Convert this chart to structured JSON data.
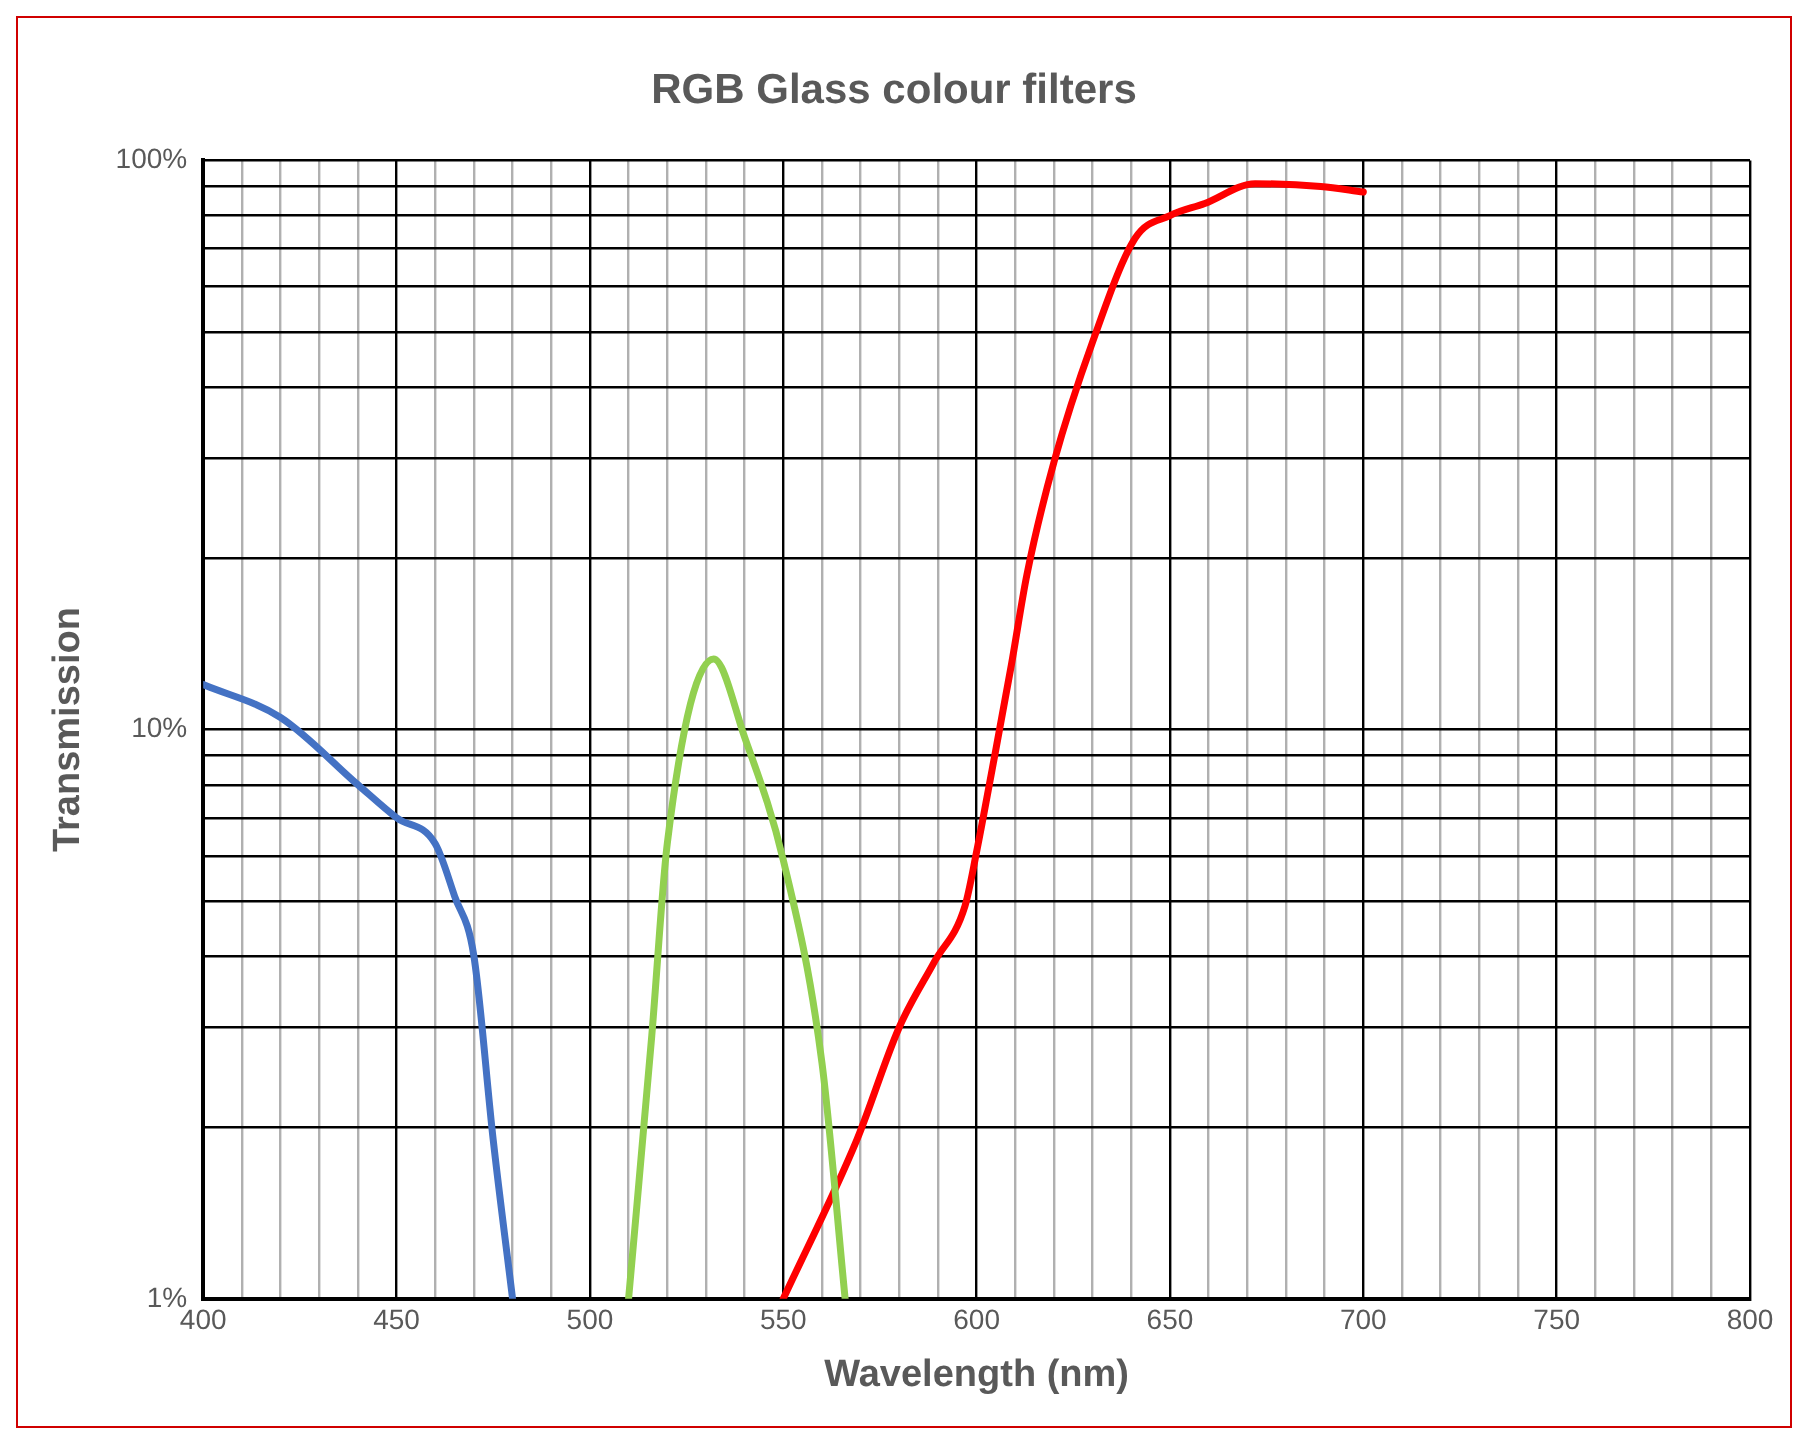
{
  "chart_data": {
    "type": "line",
    "title": "RGB Glass colour filters",
    "xlabel": "Wavelength (nm)",
    "ylabel": "Transmission",
    "log": "y",
    "grid": true,
    "legend": false,
    "marker": "none",
    "line_style": "solid",
    "xlim": [
      400,
      800
    ],
    "xticks": [
      400,
      {
        "value": 410,
        "label": null
      },
      {
        "value": 420,
        "label": null
      },
      {
        "value": 430,
        "label": null
      },
      {
        "value": 440,
        "label": null
      },
      450,
      {
        "value": 460,
        "label": null
      },
      {
        "value": 470,
        "label": null
      },
      {
        "value": 480,
        "label": null
      },
      {
        "value": 490,
        "label": null
      },
      500,
      {
        "value": 510,
        "label": null
      },
      {
        "value": 520,
        "label": null
      },
      {
        "value": 530,
        "label": null
      },
      {
        "value": 540,
        "label": null
      },
      550,
      {
        "value": 560,
        "label": null
      },
      {
        "value": 570,
        "label": null
      },
      {
        "value": 580,
        "label": null
      },
      {
        "value": 590,
        "label": null
      },
      600,
      {
        "value": 610,
        "label": null
      },
      {
        "value": 620,
        "label": null
      },
      {
        "value": 630,
        "label": null
      },
      {
        "value": 640,
        "label": null
      },
      650,
      {
        "value": 660,
        "label": null
      },
      {
        "value": 670,
        "label": null
      },
      {
        "value": 680,
        "label": null
      },
      {
        "value": 690,
        "label": null
      },
      700,
      {
        "value": 710,
        "label": null
      },
      {
        "value": 720,
        "label": null
      },
      {
        "value": 730,
        "label": null
      },
      {
        "value": 740,
        "label": null
      },
      750,
      {
        "value": 760,
        "label": null
      },
      {
        "value": 770,
        "label": null
      },
      {
        "value": 780,
        "label": null
      },
      {
        "value": 790,
        "label": null
      },
      800
    ],
    "ylim": [
      1,
      100
    ],
    "yticks": [
      {
        "value": 1,
        "label": "1%"
      },
      {
        "value": 2,
        "label": null
      },
      {
        "value": 3,
        "label": null
      },
      {
        "value": 4,
        "label": null
      },
      {
        "value": 5,
        "label": null
      },
      {
        "value": 6,
        "label": null
      },
      {
        "value": 7,
        "label": null
      },
      {
        "value": 8,
        "label": null
      },
      {
        "value": 9,
        "label": null
      },
      {
        "value": 10,
        "label": "10%"
      },
      {
        "value": 20,
        "label": null
      },
      {
        "value": 30,
        "label": null
      },
      {
        "value": 40,
        "label": null
      },
      {
        "value": 50,
        "label": null
      },
      {
        "value": 60,
        "label": null
      },
      {
        "value": 70,
        "label": null
      },
      {
        "value": 80,
        "label": null
      },
      {
        "value": 90,
        "label": null
      },
      {
        "value": 100,
        "label": "100%"
      }
    ],
    "series": [
      {
        "color": "#4472c4",
        "x": [
          400,
          420,
          440,
          450,
          460,
          465,
          470,
          475,
          480
        ],
        "values": [
          12,
          10.5,
          8,
          7,
          6.3,
          5.1,
          4,
          1.9,
          1
        ]
      },
      {
        "color": "#92d050",
        "x": [
          510,
          516,
          520,
          532,
          540,
          550,
          560,
          566
        ],
        "values": [
          1,
          2.9,
          6.3,
          13.3,
          9.7,
          5.9,
          2.6,
          1
        ]
      },
      {
        "color": "#ff0000",
        "x": [
          550,
          569,
          580,
          589,
          597,
          600,
          604,
          609,
          613,
          620,
          630,
          641,
          650,
          659,
          672,
          689,
          700
        ],
        "values": [
          1,
          1.9,
          3,
          3.9,
          4.9,
          6.1,
          8.5,
          13,
          18.7,
          29.5,
          48,
          73,
          80,
          84,
          91,
          90,
          88
        ]
      }
    ]
  }
}
